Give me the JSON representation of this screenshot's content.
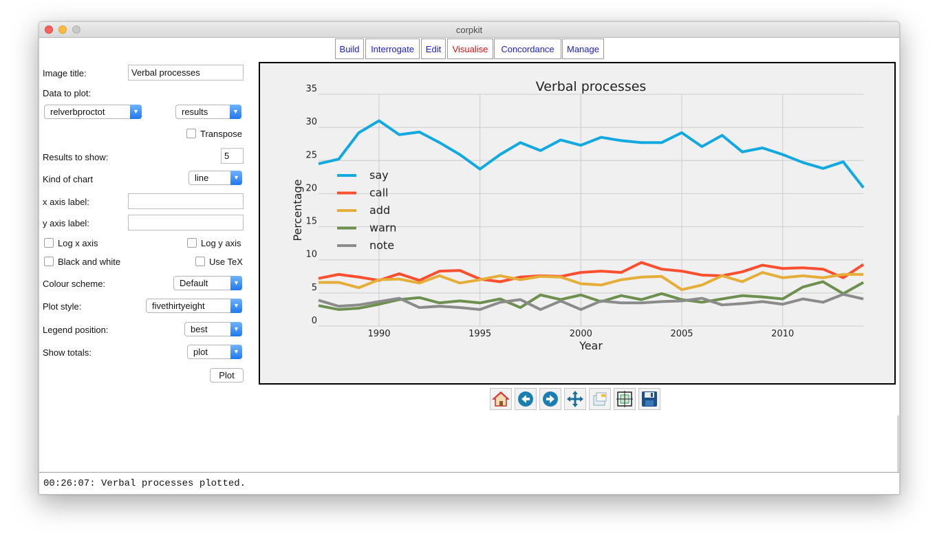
{
  "window": {
    "title": "corpkit"
  },
  "tabs": [
    {
      "label": "Build"
    },
    {
      "label": "Interrogate"
    },
    {
      "label": "Edit"
    },
    {
      "label": "Visualise"
    },
    {
      "label": "Concordance"
    },
    {
      "label": "Manage"
    }
  ],
  "form": {
    "image_title_label": "Image title:",
    "image_title_value": "Verbal processes",
    "data_to_plot_label": "Data to plot:",
    "data_select": "relverbproctot",
    "data_subselect": "results",
    "transpose_label": "Transpose",
    "results_to_show_label": "Results to show:",
    "results_to_show_value": "5",
    "kind_of_chart_label": "Kind of chart",
    "kind_of_chart_value": "line",
    "x_axis_label_label": "x axis label:",
    "x_axis_label_value": "",
    "y_axis_label_label": "y axis label:",
    "y_axis_label_value": "",
    "log_x_label": "Log x axis",
    "log_y_label": "Log y axis",
    "bw_label": "Black and white",
    "tex_label": "Use TeX",
    "colour_scheme_label": "Colour scheme:",
    "colour_scheme_value": "Default",
    "plot_style_label": "Plot style:",
    "plot_style_value": "fivethirtyeight",
    "legend_position_label": "Legend position:",
    "legend_position_value": "best",
    "show_totals_label": "Show totals:",
    "show_totals_value": "plot",
    "plot_button": "Plot"
  },
  "toolbar_icons": [
    "home-icon",
    "back-icon",
    "forward-icon",
    "pan-icon",
    "zoom-icon",
    "configure-subplots-icon",
    "save-icon"
  ],
  "status": {
    "text": "00:26:07: Verbal processes plotted."
  },
  "colors": {
    "active_tab": "#e01010",
    "tab_link": "#1a1adb"
  },
  "chart_data": {
    "type": "line",
    "title": "Verbal processes",
    "xlabel": "Year",
    "ylabel": "Percentage",
    "x": [
      1987,
      1988,
      1989,
      1990,
      1991,
      1992,
      1993,
      1994,
      1995,
      1996,
      1997,
      1998,
      1999,
      2000,
      2001,
      2002,
      2003,
      2004,
      2005,
      2006,
      2007,
      2008,
      2009,
      2010,
      2011,
      2012,
      2013,
      2014
    ],
    "xlim": [
      1987,
      2014
    ],
    "ylim": [
      0,
      35
    ],
    "xticks": [
      1990,
      1995,
      2000,
      2005,
      2010
    ],
    "yticks": [
      0,
      5,
      10,
      15,
      20,
      25,
      30,
      35
    ],
    "grid": true,
    "legend_position": "upper-left",
    "series": [
      {
        "name": "say",
        "color": "#12a9e0",
        "values": [
          24.5,
          25.2,
          29.2,
          31.0,
          28.9,
          29.3,
          27.7,
          25.9,
          23.7,
          25.9,
          27.7,
          26.5,
          28.1,
          27.3,
          28.5,
          28.0,
          27.7,
          27.7,
          29.2,
          27.1,
          28.8,
          26.3,
          26.9,
          25.9,
          24.7,
          23.8,
          24.8,
          20.9
        ]
      },
      {
        "name": "call",
        "color": "#fc4f30",
        "values": [
          7.2,
          7.8,
          7.4,
          6.9,
          7.9,
          6.9,
          8.3,
          8.4,
          7.1,
          6.7,
          7.4,
          7.6,
          7.5,
          8.1,
          8.3,
          8.1,
          9.6,
          8.6,
          8.3,
          7.7,
          7.6,
          8.2,
          9.2,
          8.7,
          8.8,
          8.6,
          7.3,
          9.3
        ]
      },
      {
        "name": "add",
        "color": "#e5ae38",
        "values": [
          6.6,
          6.6,
          5.8,
          7.0,
          7.1,
          6.5,
          7.6,
          6.5,
          7.0,
          7.6,
          7.0,
          7.5,
          7.4,
          6.4,
          6.2,
          7.0,
          7.4,
          7.5,
          5.5,
          6.2,
          7.6,
          6.7,
          8.1,
          7.3,
          7.6,
          7.3,
          7.8,
          7.8
        ]
      },
      {
        "name": "warn",
        "color": "#6d904f",
        "values": [
          3.1,
          2.5,
          2.7,
          3.3,
          4.0,
          4.3,
          3.5,
          3.8,
          3.5,
          4.1,
          2.8,
          4.7,
          4.0,
          4.7,
          3.7,
          4.6,
          4.0,
          4.9,
          4.0,
          3.6,
          4.1,
          4.6,
          4.4,
          4.1,
          5.9,
          6.7,
          4.9,
          6.6
        ]
      },
      {
        "name": "note",
        "color": "#8b8b8b",
        "values": [
          3.9,
          3.0,
          3.2,
          3.7,
          4.2,
          2.8,
          3.0,
          2.8,
          2.5,
          3.6,
          4.0,
          2.5,
          3.8,
          2.5,
          3.8,
          3.5,
          3.5,
          3.7,
          3.8,
          4.2,
          3.2,
          3.4,
          3.7,
          3.3,
          4.1,
          3.6,
          4.8,
          4.1
        ]
      }
    ]
  }
}
